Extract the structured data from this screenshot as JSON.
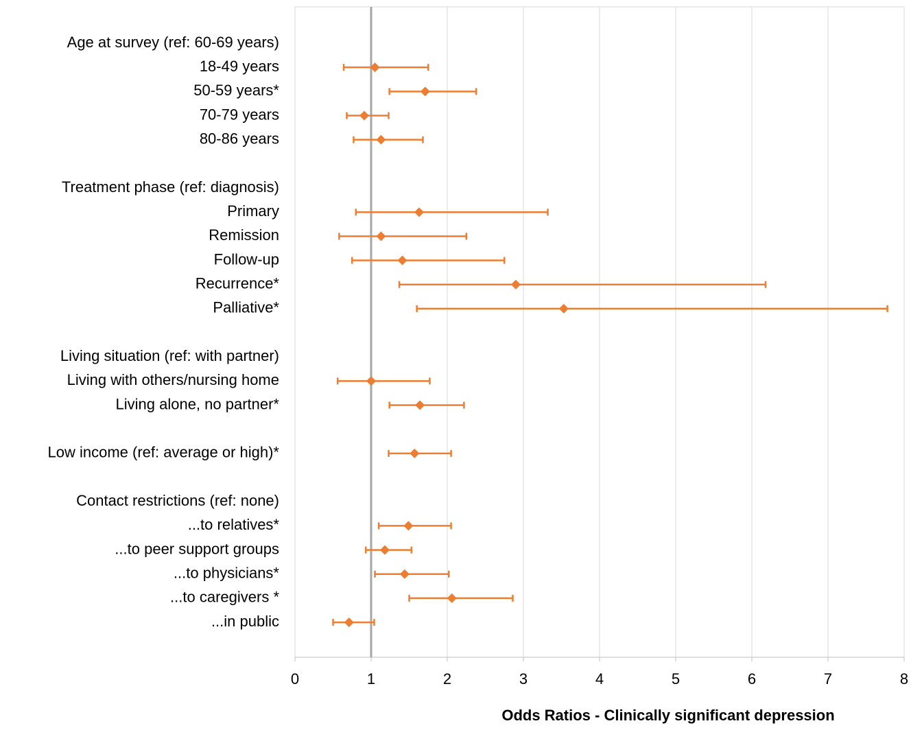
{
  "chart_data": {
    "type": "forest",
    "xlabel": "Odds Ratios - Clinically significant depression",
    "categories": [
      "Age at survey (ref: 60-69 years)",
      "18-49 years",
      "50-59 years*",
      "70-79 years",
      "80-86 years",
      null,
      "Treatment phase (ref: diagnosis)",
      "Primary",
      "Remission",
      "Follow-up",
      "Recurrence*",
      "Palliative*",
      null,
      "Living situation (ref: with partner)",
      "Living with others/nursing home",
      "Living alone, no partner*",
      null,
      "Low income (ref: average or high)*",
      null,
      "Contact restrictions (ref: none)",
      "...to relatives*",
      "...to peer support groups",
      "...to physicians*",
      "...to caregivers *",
      "...in public"
    ],
    "values": [
      null,
      1.05,
      1.71,
      0.91,
      1.13,
      null,
      null,
      1.63,
      1.13,
      1.41,
      2.9,
      3.53,
      null,
      null,
      1.0,
      1.64,
      null,
      1.57,
      null,
      null,
      1.49,
      1.18,
      1.44,
      2.06,
      0.71
    ],
    "lower": [
      null,
      0.64,
      1.24,
      0.68,
      0.77,
      null,
      null,
      0.8,
      0.58,
      0.75,
      1.37,
      1.6,
      null,
      null,
      0.56,
      1.24,
      null,
      1.23,
      null,
      null,
      1.1,
      0.93,
      1.05,
      1.5,
      0.5
    ],
    "upper": [
      null,
      1.75,
      2.38,
      1.23,
      1.68,
      null,
      null,
      3.32,
      2.25,
      2.75,
      6.18,
      7.78,
      null,
      null,
      1.77,
      2.22,
      null,
      2.05,
      null,
      null,
      2.05,
      1.53,
      2.02,
      2.86,
      1.04
    ],
    "color": "#ed7d31",
    "reference_line": 1,
    "xlim": [
      0,
      8
    ],
    "xticks": [
      0,
      1,
      2,
      3,
      4,
      5,
      6,
      7,
      8
    ],
    "grid": true
  }
}
